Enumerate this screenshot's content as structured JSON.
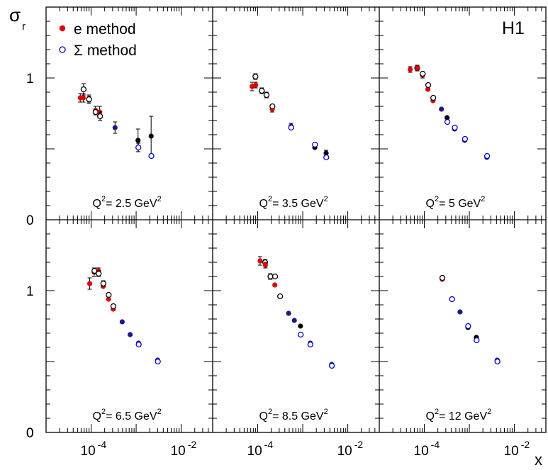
{
  "chart_data": {
    "type": "scatter",
    "experiment": "H1",
    "ylabel_symbol": "σ",
    "ylabel_subscript": "r",
    "xlabel": "x",
    "x_scale": "log",
    "xlim": [
      1e-05,
      0.05
    ],
    "ylim": [
      0,
      1.5
    ],
    "y_ticks": [
      "0",
      "1"
    ],
    "x_ticks": [
      {
        "base": "10",
        "exp": "-4",
        "value": 0.0001
      },
      {
        "base": "10",
        "exp": "-2",
        "value": 0.01
      }
    ],
    "legend": [
      {
        "label": "e method",
        "marker": "filled-circle",
        "color": "#e00000"
      },
      {
        "label": "Σ method",
        "marker": "open-circle",
        "color": "#0000cc"
      }
    ],
    "series_styles": {
      "e": {
        "color": "#e00000",
        "fill": true
      },
      "sigma": {
        "color": "#0000cc",
        "fill": false
      },
      "e_overlap": {
        "color": "#1a1a8c",
        "fill": true
      },
      "black_filled": {
        "color": "#000000",
        "fill": true
      },
      "black_open": {
        "color": "#000000",
        "fill": false
      }
    },
    "panels": [
      {
        "q2_prefix": "Q",
        "q2_power": "2",
        "q2_value": "= 2.5 GeV",
        "q2_unit_power": "2",
        "points": [
          {
            "x": 5.75e-05,
            "y": 0.86,
            "err": 0.03,
            "style": "e"
          },
          {
            "x": 6.7e-05,
            "y": 0.86,
            "err": 0.03,
            "style": "e"
          },
          {
            "x": 6.8e-05,
            "y": 0.92,
            "err": 0.04,
            "style": "black_open"
          },
          {
            "x": 8.9e-05,
            "y": 0.85,
            "err": 0.03,
            "style": "black_filled"
          },
          {
            "x": 9e-05,
            "y": 0.85,
            "err": 0.02,
            "style": "black_open"
          },
          {
            "x": 0.000125,
            "y": 0.77,
            "err": 0.03,
            "style": "e"
          },
          {
            "x": 0.000126,
            "y": 0.76,
            "err": 0.02,
            "style": "black_open"
          },
          {
            "x": 0.000155,
            "y": 0.76,
            "err": 0.04,
            "style": "e"
          },
          {
            "x": 0.000158,
            "y": 0.73,
            "err": 0.03,
            "style": "black_open"
          },
          {
            "x": 0.00034,
            "y": 0.65,
            "err": 0.04,
            "style": "e_overlap"
          },
          {
            "x": 0.0011,
            "y": 0.56,
            "err": 0.08,
            "style": "black_filled"
          },
          {
            "x": 0.00112,
            "y": 0.51,
            "err": 0.03,
            "style": "sigma"
          },
          {
            "x": 0.00215,
            "y": 0.59,
            "err": 0.14,
            "style": "black_filled"
          },
          {
            "x": 0.00218,
            "y": 0.45,
            "err": 0.0,
            "style": "sigma"
          }
        ]
      },
      {
        "q2_prefix": "Q",
        "q2_power": "2",
        "q2_value": "= 3.5 GeV",
        "q2_unit_power": "2",
        "points": [
          {
            "x": 7.5e-05,
            "y": 0.94,
            "err": 0.03,
            "style": "e"
          },
          {
            "x": 8.9e-05,
            "y": 1.01,
            "err": 0.02,
            "style": "black_open"
          },
          {
            "x": 9e-05,
            "y": 0.95,
            "err": 0.02,
            "style": "e"
          },
          {
            "x": 0.000122,
            "y": 0.91,
            "err": 0.02,
            "style": "e"
          },
          {
            "x": 0.000123,
            "y": 0.91,
            "err": 0.02,
            "style": "black_open"
          },
          {
            "x": 0.000155,
            "y": 0.88,
            "err": 0.02,
            "style": "black_filled"
          },
          {
            "x": 0.000157,
            "y": 0.88,
            "err": 0.02,
            "style": "black_open"
          },
          {
            "x": 0.00021,
            "y": 0.78,
            "err": 0.02,
            "style": "e"
          },
          {
            "x": 0.000212,
            "y": 0.8,
            "err": 0.0,
            "style": "black_open"
          },
          {
            "x": 0.00055,
            "y": 0.66,
            "err": 0.02,
            "style": "e_overlap"
          },
          {
            "x": 0.000553,
            "y": 0.65,
            "err": 0.0,
            "style": "sigma"
          },
          {
            "x": 0.00185,
            "y": 0.51,
            "err": 0.0,
            "style": "black_filled"
          },
          {
            "x": 0.00187,
            "y": 0.53,
            "err": 0.0,
            "style": "sigma"
          },
          {
            "x": 0.0033,
            "y": 0.47,
            "err": 0.02,
            "style": "black_filled"
          },
          {
            "x": 0.00333,
            "y": 0.44,
            "err": 0.0,
            "style": "sigma"
          }
        ]
      },
      {
        "q2_prefix": "Q",
        "q2_power": "2",
        "q2_value": "= 5 GeV",
        "q2_unit_power": "2",
        "points": [
          {
            "x": 4.85e-05,
            "y": 1.06,
            "err": 0.02,
            "style": "e"
          },
          {
            "x": 6.95e-05,
            "y": 1.07,
            "err": 0.02,
            "style": "black_open"
          },
          {
            "x": 7e-05,
            "y": 1.07,
            "err": 0.02,
            "style": "e"
          },
          {
            "x": 9.15e-05,
            "y": 1.02,
            "err": 0.02,
            "style": "e"
          },
          {
            "x": 9.2e-05,
            "y": 1.03,
            "err": 0.0,
            "style": "black_open"
          },
          {
            "x": 0.00012,
            "y": 0.92,
            "err": 0.0,
            "style": "e"
          },
          {
            "x": 0.000122,
            "y": 0.95,
            "err": 0.0,
            "style": "black_open"
          },
          {
            "x": 0.000156,
            "y": 0.84,
            "err": 0.0,
            "style": "e"
          },
          {
            "x": 0.000158,
            "y": 0.86,
            "err": 0.0,
            "style": "black_open"
          },
          {
            "x": 0.00024,
            "y": 0.78,
            "err": 0.0,
            "style": "e_overlap"
          },
          {
            "x": 0.00032,
            "y": 0.72,
            "err": 0.0,
            "style": "black_filled"
          },
          {
            "x": 0.000325,
            "y": 0.69,
            "err": 0.0,
            "style": "sigma"
          },
          {
            "x": 0.00047,
            "y": 0.64,
            "err": 0.0,
            "style": "e_overlap"
          },
          {
            "x": 0.000475,
            "y": 0.65,
            "err": 0.0,
            "style": "sigma"
          },
          {
            "x": 0.00079,
            "y": 0.56,
            "err": 0.0,
            "style": "e_overlap"
          },
          {
            "x": 0.0008,
            "y": 0.57,
            "err": 0.0,
            "style": "sigma"
          },
          {
            "x": 0.00245,
            "y": 0.44,
            "err": 0.0,
            "style": "e_overlap"
          },
          {
            "x": 0.00248,
            "y": 0.45,
            "err": 0.0,
            "style": "sigma"
          }
        ]
      },
      {
        "q2_prefix": "Q",
        "q2_power": "2",
        "q2_value": "= 6.5 GeV",
        "q2_unit_power": "2",
        "points": [
          {
            "x": 9.3e-05,
            "y": 1.05,
            "err": 0.04,
            "style": "e"
          },
          {
            "x": 0.000117,
            "y": 1.13,
            "err": 0.03,
            "style": "e"
          },
          {
            "x": 0.000119,
            "y": 1.14,
            "err": 0.02,
            "style": "black_open"
          },
          {
            "x": 0.000145,
            "y": 1.14,
            "err": 0.02,
            "style": "e"
          },
          {
            "x": 0.000147,
            "y": 1.12,
            "err": 0.02,
            "style": "black_open"
          },
          {
            "x": 0.000185,
            "y": 1.03,
            "err": 0.0,
            "style": "e"
          },
          {
            "x": 0.000187,
            "y": 1.05,
            "err": 0.02,
            "style": "black_open"
          },
          {
            "x": 0.000243,
            "y": 0.94,
            "err": 0.0,
            "style": "e"
          },
          {
            "x": 0.000245,
            "y": 0.97,
            "err": 0.0,
            "style": "black_open"
          },
          {
            "x": 0.00031,
            "y": 0.87,
            "err": 0.0,
            "style": "e"
          },
          {
            "x": 0.000312,
            "y": 0.89,
            "err": 0.0,
            "style": "black_open"
          },
          {
            "x": 0.00049,
            "y": 0.78,
            "err": 0.0,
            "style": "e_overlap"
          },
          {
            "x": 0.000735,
            "y": 0.69,
            "err": 0.0,
            "style": "e_overlap"
          },
          {
            "x": 0.00113,
            "y": 0.63,
            "err": 0.0,
            "style": "e_overlap"
          },
          {
            "x": 0.00114,
            "y": 0.62,
            "err": 0.0,
            "style": "sigma"
          },
          {
            "x": 0.003,
            "y": 0.51,
            "err": 0.0,
            "style": "e_overlap"
          },
          {
            "x": 0.00303,
            "y": 0.5,
            "err": 0.0,
            "style": "sigma"
          }
        ]
      },
      {
        "q2_prefix": "Q",
        "q2_power": "2",
        "q2_value": "= 8.5 GeV",
        "q2_unit_power": "2",
        "points": [
          {
            "x": 0.000113,
            "y": 1.21,
            "err": 0.03,
            "style": "e"
          },
          {
            "x": 0.000146,
            "y": 1.2,
            "err": 0.02,
            "style": "black_open"
          },
          {
            "x": 0.000148,
            "y": 1.18,
            "err": 0.02,
            "style": "e"
          },
          {
            "x": 0.00019,
            "y": 1.1,
            "err": 0.02,
            "style": "e_overlap"
          },
          {
            "x": 0.000192,
            "y": 1.1,
            "err": 0.0,
            "style": "black_open"
          },
          {
            "x": 0.00024,
            "y": 1.04,
            "err": 0.0,
            "style": "e"
          },
          {
            "x": 0.000243,
            "y": 1.1,
            "err": 0.0,
            "style": "black_open"
          },
          {
            "x": 0.000313,
            "y": 0.96,
            "err": 0.0,
            "style": "e"
          },
          {
            "x": 0.000315,
            "y": 0.96,
            "err": 0.0,
            "style": "black_open"
          },
          {
            "x": 0.000485,
            "y": 0.84,
            "err": 0.0,
            "style": "e_overlap"
          },
          {
            "x": 0.00065,
            "y": 0.79,
            "err": 0.0,
            "style": "e_overlap"
          },
          {
            "x": 0.00089,
            "y": 0.75,
            "err": 0.0,
            "style": "black_filled"
          },
          {
            "x": 0.0009,
            "y": 0.69,
            "err": 0.0,
            "style": "sigma"
          },
          {
            "x": 0.00147,
            "y": 0.63,
            "err": 0.0,
            "style": "e_overlap"
          },
          {
            "x": 0.00148,
            "y": 0.62,
            "err": 0.0,
            "style": "sigma"
          },
          {
            "x": 0.0044,
            "y": 0.48,
            "err": 0.0,
            "style": "e_overlap"
          },
          {
            "x": 0.00443,
            "y": 0.47,
            "err": 0.0,
            "style": "sigma"
          }
        ]
      },
      {
        "q2_prefix": "Q",
        "q2_power": "2",
        "q2_value": "= 12 GeV",
        "q2_unit_power": "2",
        "points": [
          {
            "x": 0.00025,
            "y": 1.08,
            "err": 0.0,
            "style": "e"
          },
          {
            "x": 0.000252,
            "y": 1.09,
            "err": 0.0,
            "style": "black_open"
          },
          {
            "x": 0.00041,
            "y": 0.94,
            "err": 0.0,
            "style": "e_overlap"
          },
          {
            "x": 0.000413,
            "y": 0.94,
            "err": 0.0,
            "style": "sigma"
          },
          {
            "x": 0.00062,
            "y": 0.85,
            "err": 0.0,
            "style": "e_overlap"
          },
          {
            "x": 0.00093,
            "y": 0.74,
            "err": 0.0,
            "style": "black_filled"
          },
          {
            "x": 0.00094,
            "y": 0.75,
            "err": 0.0,
            "style": "sigma"
          },
          {
            "x": 0.00143,
            "y": 0.67,
            "err": 0.0,
            "style": "black_filled"
          },
          {
            "x": 0.00145,
            "y": 0.65,
            "err": 0.0,
            "style": "sigma"
          },
          {
            "x": 0.00415,
            "y": 0.51,
            "err": 0.0,
            "style": "e_overlap"
          },
          {
            "x": 0.0042,
            "y": 0.5,
            "err": 0.0,
            "style": "sigma"
          }
        ]
      }
    ]
  }
}
